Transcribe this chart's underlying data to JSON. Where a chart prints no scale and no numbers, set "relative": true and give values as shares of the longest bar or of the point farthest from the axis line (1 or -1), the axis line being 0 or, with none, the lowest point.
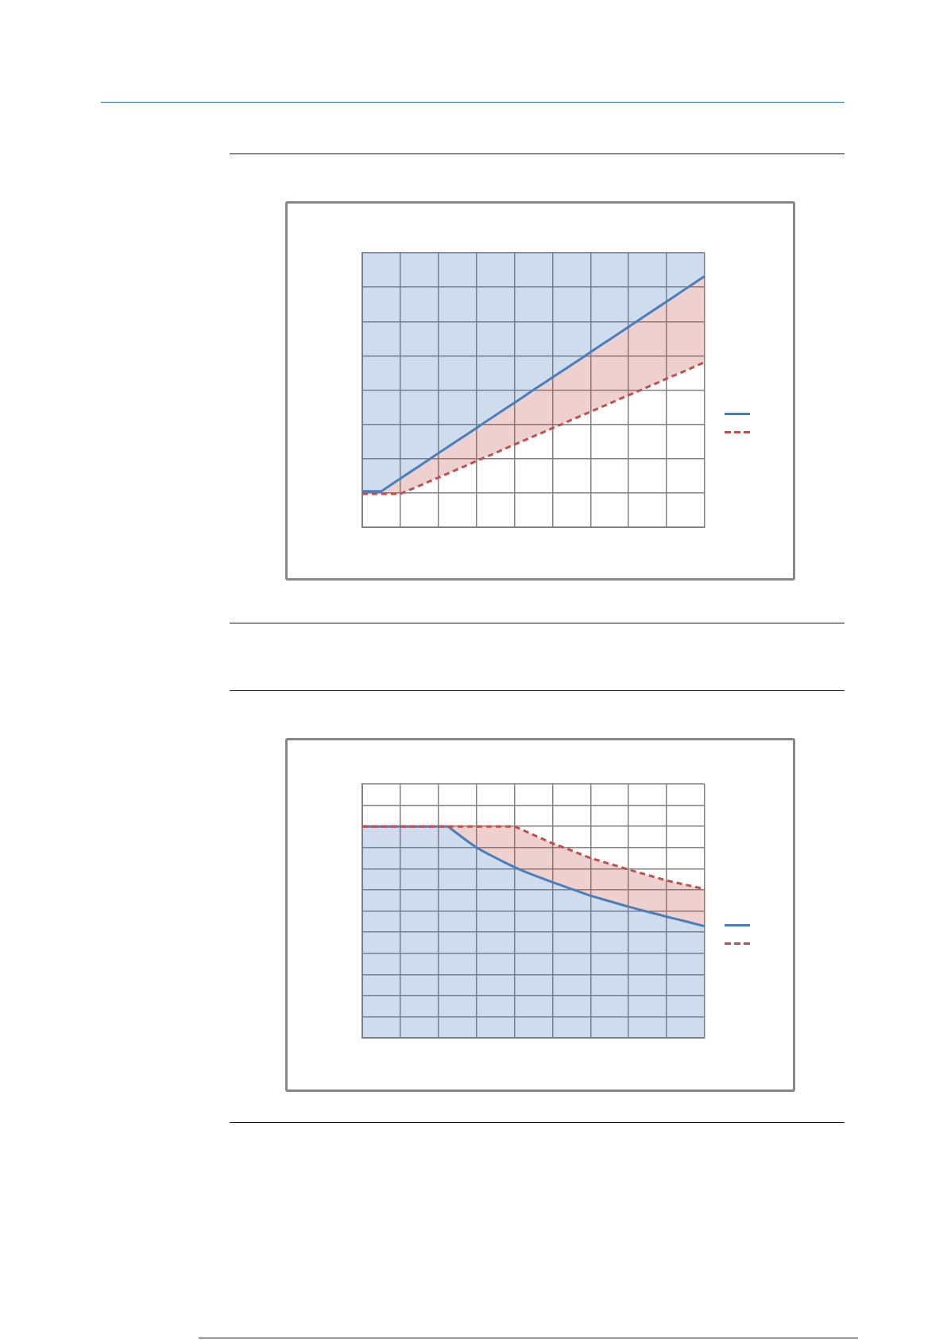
{
  "chart_data": [
    {
      "type": "line",
      "relative": true,
      "grid": true,
      "categories": [
        null,
        null,
        null,
        null,
        null,
        null,
        null,
        null,
        null,
        null,
        null,
        null,
        null,
        null,
        null,
        null,
        null,
        null,
        null,
        null,
        null,
        null,
        null,
        null,
        null,
        null,
        null,
        null,
        null,
        null,
        null,
        null,
        null,
        null,
        null,
        null,
        null
      ],
      "series": [
        {
          "color": "#4a7ebb",
          "line_style": "solid",
          "values": [
            0.143,
            0.143,
            0.143,
            0.169,
            0.194,
            0.219,
            0.244,
            0.269,
            0.295,
            0.32,
            0.345,
            0.37,
            0.395,
            0.421,
            0.446,
            0.471,
            0.496,
            0.521,
            0.547,
            0.572,
            0.597,
            0.622,
            0.647,
            0.672,
            0.698,
            0.723,
            0.748,
            0.773,
            0.798,
            0.824,
            0.849,
            0.874,
            0.899,
            0.924,
            0.95,
            0.975,
            1
          ],
          "lower": [
            0.143,
            0.143,
            0.143,
            0.169,
            0.194,
            0.219,
            0.244,
            0.269,
            0.295,
            0.32,
            0.345,
            0.37,
            0.395,
            0.421,
            0.446,
            0.471,
            0.496,
            0.521,
            0.547,
            0.572,
            0.597,
            0.622,
            0.647,
            0.672,
            0.698,
            0.723,
            0.748,
            0.773,
            0.798,
            0.824,
            0.849,
            0.874,
            0.899,
            0.924,
            0.95,
            0.975,
            1
          ],
          "upper": [
            1.093,
            1.093,
            1.093,
            1.093,
            1.093,
            1.093,
            1.093,
            1.093,
            1.093,
            1.093,
            1.093,
            1.093,
            1.093,
            1.093,
            1.093,
            1.093,
            1.093,
            1.093,
            1.093,
            1.093,
            1.093,
            1.093,
            1.093,
            1.093,
            1.093,
            1.093,
            1.093,
            1.093,
            1.093,
            1.093,
            1.093,
            1.093,
            1.093,
            1.093,
            1.093,
            1.093,
            1.093
          ]
        },
        {
          "color": "#c0504d",
          "line_style": "dashed",
          "values": [
            0.133,
            0.133,
            0.133,
            0.133,
            0.133,
            0.149,
            0.165,
            0.182,
            0.198,
            0.214,
            0.231,
            0.247,
            0.264,
            0.28,
            0.296,
            0.313,
            0.329,
            0.346,
            0.362,
            0.378,
            0.395,
            0.411,
            0.428,
            0.444,
            0.46,
            0.477,
            0.493,
            0.51,
            0.526,
            0.542,
            0.559,
            0.575,
            0.592,
            0.608,
            0.624,
            0.641,
            0.657
          ],
          "lower": [
            0.133,
            0.133,
            0.133,
            0.133,
            0.133,
            0.149,
            0.165,
            0.182,
            0.198,
            0.214,
            0.231,
            0.247,
            0.264,
            0.28,
            0.296,
            0.313,
            0.329,
            0.346,
            0.362,
            0.378,
            0.395,
            0.411,
            0.428,
            0.444,
            0.46,
            0.477,
            0.493,
            0.51,
            0.526,
            0.542,
            0.559,
            0.575,
            0.592,
            0.608,
            0.624,
            0.641,
            0.657
          ],
          "upper": [
            0.143,
            0.143,
            0.143,
            0.169,
            0.194,
            0.219,
            0.244,
            0.269,
            0.295,
            0.32,
            0.345,
            0.37,
            0.395,
            0.421,
            0.446,
            0.471,
            0.496,
            0.521,
            0.547,
            0.572,
            0.597,
            0.622,
            0.647,
            0.672,
            0.698,
            0.723,
            0.748,
            0.773,
            0.798,
            0.824,
            0.849,
            0.874,
            0.899,
            0.924,
            0.95,
            0.975,
            1
          ]
        }
      ]
    },
    {
      "type": "line",
      "relative": true,
      "grid": true,
      "categories": [
        null,
        null,
        null,
        null,
        null,
        null,
        null,
        null,
        null,
        null,
        null,
        null,
        null,
        null,
        null,
        null,
        null,
        null,
        null,
        null,
        null,
        null,
        null,
        null,
        null,
        null,
        null,
        null,
        null,
        null,
        null,
        null,
        null,
        null,
        null,
        null,
        null
      ],
      "series": [
        {
          "type": "area",
          "color": "#4a7ebb",
          "line_style": "solid",
          "values": [
            1,
            1,
            1,
            1,
            1,
            1,
            1,
            1,
            1,
            1,
            0.966,
            0.932,
            0.9,
            0.875,
            0.852,
            0.829,
            0.807,
            0.788,
            0.77,
            0.753,
            0.736,
            0.72,
            0.704,
            0.688,
            0.672,
            0.659,
            0.646,
            0.633,
            0.62,
            0.608,
            0.596,
            0.585,
            0.573,
            0.562,
            0.551,
            0.539,
            0.528
          ]
        },
        {
          "color": "#c0504d",
          "line_style": "dashed",
          "values": [
            1,
            1,
            1,
            1,
            1,
            1,
            1,
            1,
            1,
            1,
            1,
            1,
            1,
            1,
            1,
            1,
            1,
            0.98,
            0.96,
            0.94,
            0.92,
            0.903,
            0.886,
            0.868,
            0.85,
            0.837,
            0.823,
            0.81,
            0.796,
            0.783,
            0.77,
            0.757,
            0.744,
            0.734,
            0.724,
            0.714,
            0.704
          ],
          "lower": [
            1,
            1,
            1,
            1,
            1,
            1,
            1,
            1,
            1,
            1,
            0.966,
            0.932,
            0.9,
            0.875,
            0.852,
            0.829,
            0.807,
            0.788,
            0.77,
            0.753,
            0.736,
            0.72,
            0.704,
            0.688,
            0.672,
            0.659,
            0.646,
            0.633,
            0.62,
            0.608,
            0.596,
            0.585,
            0.573,
            0.562,
            0.551,
            0.539,
            0.528
          ],
          "upper": [
            1,
            1,
            1,
            1,
            1,
            1,
            1,
            1,
            1,
            1,
            1,
            1,
            1,
            1,
            1,
            1,
            1,
            0.98,
            0.96,
            0.94,
            0.92,
            0.903,
            0.886,
            0.868,
            0.85,
            0.837,
            0.823,
            0.81,
            0.796,
            0.783,
            0.77,
            0.757,
            0.744,
            0.734,
            0.724,
            0.714,
            0.704
          ]
        }
      ]
    }
  ]
}
